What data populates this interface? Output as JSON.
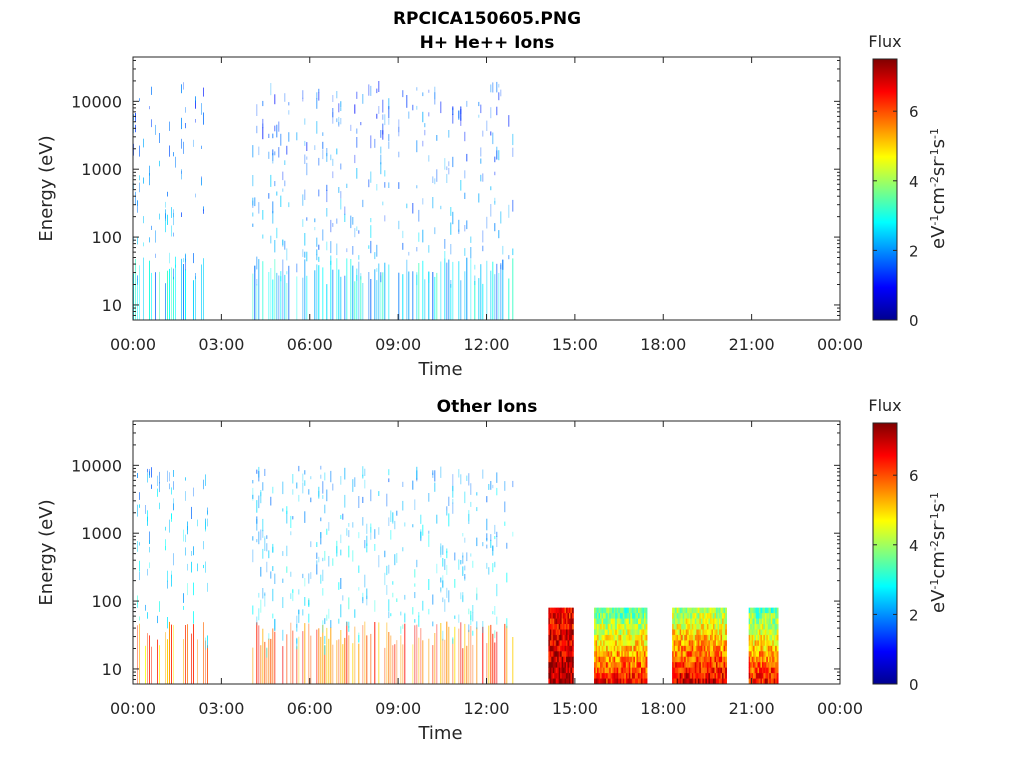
{
  "figure": {
    "title_line1": "RPCICA150605.PNG",
    "title_line2": "H+ He++ Ions"
  },
  "chart_data": [
    {
      "type": "heatmap",
      "title": "H+ He++ Ions",
      "xlabel": "Time",
      "ylabel": "Energy (eV)",
      "y_scale": "log",
      "ylim": [
        6,
        45000
      ],
      "x_tick_labels": [
        "00:00",
        "03:00",
        "06:00",
        "09:00",
        "12:00",
        "15:00",
        "18:00",
        "21:00",
        "00:00"
      ],
      "y_ticks": [
        10,
        100,
        1000,
        10000
      ],
      "y_tick_labels": [
        "10",
        "100",
        "1000",
        "10000"
      ],
      "x_range_hours": [
        0,
        24
      ],
      "colorbar": {
        "title": "Flux",
        "label": "eV-1cm-2sr-1s-1",
        "range": [
          0,
          7.5
        ],
        "ticks": [
          "0",
          "2",
          "4",
          "6"
        ],
        "colormap": "jet"
      },
      "data_blocks": [
        {
          "start_hour": 0.0,
          "end_hour": 2.55,
          "energy_min_eV": 6,
          "energy_max_eV": 20000,
          "flux_low_energy": 2.5,
          "flux_high_energy": 1.5,
          "pattern": "sparse vertical streaks"
        },
        {
          "start_hour": 4.05,
          "end_hour": 12.9,
          "energy_min_eV": 6,
          "energy_max_eV": 20000,
          "flux_low_energy": 2.5,
          "flux_high_energy": 1.5,
          "pattern": "sparse vertical streaks"
        }
      ]
    },
    {
      "type": "heatmap",
      "title": "Other Ions",
      "xlabel": "Time",
      "ylabel": "Energy (eV)",
      "y_scale": "log",
      "ylim": [
        6,
        45000
      ],
      "x_tick_labels": [
        "00:00",
        "03:00",
        "06:00",
        "09:00",
        "12:00",
        "15:00",
        "18:00",
        "21:00",
        "00:00"
      ],
      "y_ticks": [
        10,
        100,
        1000,
        10000
      ],
      "y_tick_labels": [
        "10",
        "100",
        "1000",
        "10000"
      ],
      "x_range_hours": [
        0,
        24
      ],
      "colorbar": {
        "title": "Flux",
        "label": "eV-1cm-2sr-1s-1",
        "range": [
          0,
          7.5
        ],
        "ticks": [
          "0",
          "2",
          "4",
          "6"
        ],
        "colormap": "jet"
      },
      "data_blocks": [
        {
          "start_hour": 0.0,
          "end_hour": 2.55,
          "energy_min_eV": 6,
          "energy_max_eV": 10000,
          "flux_low_energy": 5.5,
          "flux_high_energy": 2.0,
          "pattern": "sparse vertical streaks"
        },
        {
          "start_hour": 4.05,
          "end_hour": 12.9,
          "energy_min_eV": 6,
          "energy_max_eV": 10000,
          "flux_low_energy": 5.8,
          "flux_high_energy": 2.0,
          "pattern": "sparse vertical streaks"
        },
        {
          "start_hour": 14.1,
          "end_hour": 14.95,
          "energy_min_eV": 6,
          "energy_max_eV": 80,
          "flux_low_energy": 7.2,
          "flux_high_energy": 6.5,
          "pattern": "dense block"
        },
        {
          "start_hour": 15.65,
          "end_hour": 17.45,
          "energy_min_eV": 6,
          "energy_max_eV": 80,
          "flux_low_energy": 6.5,
          "flux_high_energy": 3.5,
          "pattern": "dense block"
        },
        {
          "start_hour": 18.3,
          "end_hour": 20.15,
          "energy_min_eV": 6,
          "energy_max_eV": 80,
          "flux_low_energy": 6.8,
          "flux_high_energy": 4.0,
          "pattern": "dense block"
        },
        {
          "start_hour": 20.9,
          "end_hour": 21.9,
          "energy_min_eV": 6,
          "energy_max_eV": 80,
          "flux_low_energy": 6.5,
          "flux_high_energy": 3.5,
          "pattern": "dense block"
        }
      ]
    }
  ]
}
